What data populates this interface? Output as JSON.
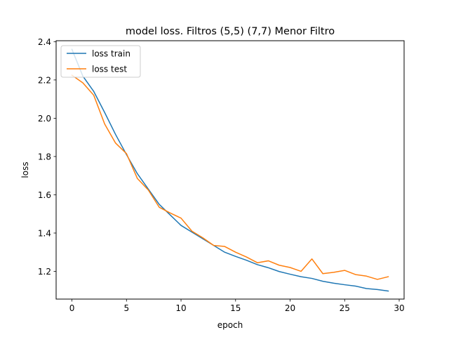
{
  "chart_data": {
    "type": "line",
    "title": "model loss. Filtros (5,5) (7,7) Menor Filtro",
    "xlabel": "epoch",
    "ylabel": "loss",
    "xlim": [
      -1.45,
      30.45
    ],
    "ylim": [
      1.055,
      2.405
    ],
    "xticks": [
      0,
      5,
      10,
      15,
      20,
      25,
      30
    ],
    "yticks": [
      1.2,
      1.4,
      1.6,
      1.8,
      2.0,
      2.2,
      2.4
    ],
    "grid": false,
    "legend_position": "upper-left",
    "x": [
      0,
      1,
      2,
      3,
      4,
      5,
      6,
      7,
      8,
      9,
      10,
      11,
      12,
      13,
      14,
      15,
      16,
      17,
      18,
      19,
      20,
      21,
      22,
      23,
      24,
      25,
      26,
      27,
      28,
      29
    ],
    "series": [
      {
        "name": "loss train",
        "color": "#1f77b4",
        "values": [
          2.36,
          2.22,
          2.14,
          2.03,
          1.915,
          1.81,
          1.71,
          1.63,
          1.55,
          1.495,
          1.44,
          1.405,
          1.37,
          1.335,
          1.3,
          1.278,
          1.258,
          1.235,
          1.219,
          1.199,
          1.185,
          1.172,
          1.163,
          1.148,
          1.138,
          1.13,
          1.123,
          1.11,
          1.105,
          1.097
        ]
      },
      {
        "name": "loss test",
        "color": "#ff7f0e",
        "values": [
          2.225,
          2.185,
          2.12,
          1.97,
          1.87,
          1.815,
          1.685,
          1.625,
          1.535,
          1.505,
          1.478,
          1.41,
          1.375,
          1.335,
          1.33,
          1.3,
          1.275,
          1.245,
          1.255,
          1.232,
          1.22,
          1.2,
          1.265,
          1.188,
          1.195,
          1.205,
          1.183,
          1.175,
          1.158,
          1.172
        ]
      }
    ]
  }
}
